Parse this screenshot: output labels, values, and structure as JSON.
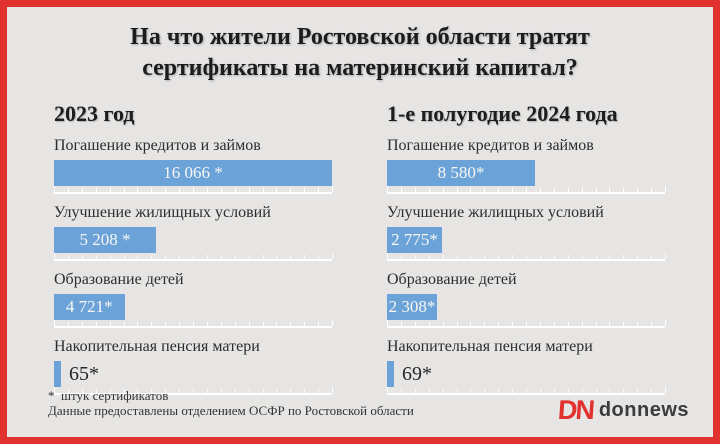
{
  "title": {
    "line1": "На что жители Ростовской области тратят",
    "line2": "сертификаты на материнский капитал?"
  },
  "footnote": {
    "line1": "*  штук сертификатов",
    "line2": "Данные предоставлены отделением ОСФР по Ростовской области"
  },
  "logo": {
    "mark": "DN",
    "text": "donnews"
  },
  "colors": {
    "border_red": "#e23230",
    "background": "#e6e5e4",
    "bar_blue": "#6ba3d8",
    "bar_text": "#f7f6f3",
    "text_dark": "#2d2d2d",
    "ruler_white": "#ffffff"
  },
  "chart_data": {
    "type": "bar",
    "orientation": "horizontal",
    "title": "На что жители Ростовской области тратят сертификаты на материнский капитал?",
    "unit": "штук сертификатов",
    "xlim": [
      0,
      16066
    ],
    "grid": "tick-ruler-under-each-bar",
    "ticks_per_ruler": 20,
    "categories": [
      "Погашение кредитов и займов",
      "Улучшение жилищных условий",
      "Образование детей",
      "Накопительная пенсия матери"
    ],
    "series": [
      {
        "name": "2023 год",
        "values": [
          16066,
          5208,
          4721,
          65
        ],
        "value_labels": [
          "16 066 *",
          "5 208 *",
          "4 721*",
          "65*"
        ],
        "width_pct": [
          100,
          36.7,
          25.4,
          2.5
        ],
        "label_position": [
          "inside",
          "inside",
          "inside",
          "outside"
        ]
      },
      {
        "name": "1-е полугодие 2024 года",
        "values": [
          8580,
          2775,
          2308,
          69
        ],
        "value_labels": [
          "8 580*",
          "2 775*",
          "2 308*",
          "69*"
        ],
        "width_pct": [
          53.2,
          19.8,
          18.0,
          2.5
        ],
        "label_position": [
          "inside",
          "inside",
          "inside",
          "outside"
        ]
      }
    ]
  }
}
